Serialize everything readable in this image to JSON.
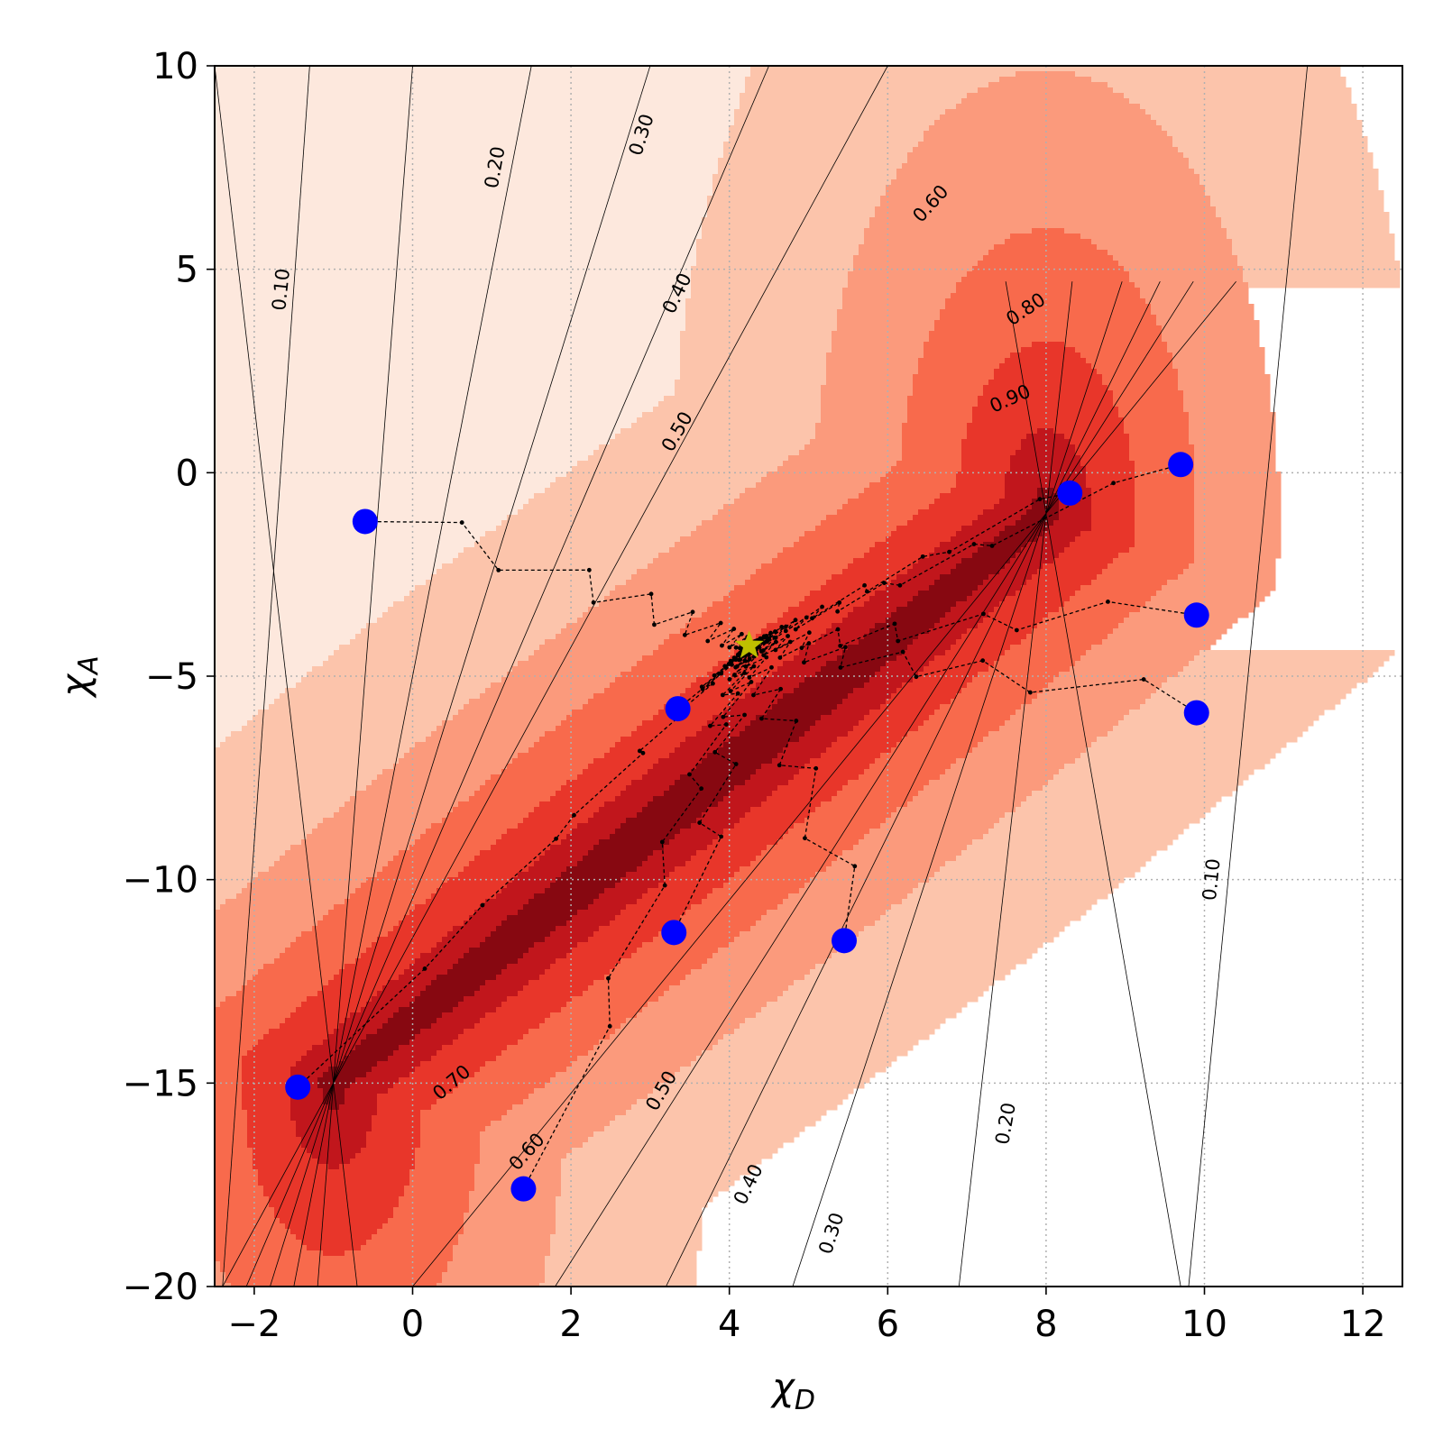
{
  "chart_data": {
    "type": "contour",
    "title": "",
    "xlabel": "χ",
    "xlabel_sub": "D",
    "ylabel": "χ",
    "ylabel_sub": "A",
    "xlim": [
      -2.5,
      12.5
    ],
    "ylim": [
      -20,
      10
    ],
    "xticks": [
      -2,
      0,
      2,
      4,
      6,
      8,
      10,
      12
    ],
    "yticks": [
      -20,
      -15,
      -10,
      -5,
      0,
      5,
      10
    ],
    "xtick_labels": [
      "−2",
      "0",
      "2",
      "4",
      "6",
      "8",
      "10",
      "12"
    ],
    "ytick_labels": [
      "−20",
      "−15",
      "−10",
      "−5",
      "0",
      "5",
      "10"
    ],
    "grid": true,
    "contour_levels": [
      0.1,
      0.2,
      0.3,
      0.4,
      0.5,
      0.6,
      0.7,
      0.8,
      0.9
    ],
    "colormap": [
      "#fde8dd",
      "#fcc4ab",
      "#fb9a7c",
      "#f86a4c",
      "#e8362a",
      "#c1161c",
      "#870811"
    ],
    "contour_labels": [
      {
        "text": "0.10",
        "x": -1.65,
        "y": 4.5,
        "angle": -84
      },
      {
        "text": "0.20",
        "x": 1.05,
        "y": 7.5,
        "angle": -80
      },
      {
        "text": "0.30",
        "x": 2.9,
        "y": 8.3,
        "angle": -72
      },
      {
        "text": "0.40",
        "x": 3.35,
        "y": 4.4,
        "angle": -64
      },
      {
        "text": "0.50",
        "x": 3.35,
        "y": 1.0,
        "angle": -60
      },
      {
        "text": "0.60",
        "x": 6.55,
        "y": 6.6,
        "angle": -48
      },
      {
        "text": "0.80",
        "x": 7.75,
        "y": 4.0,
        "angle": -34
      },
      {
        "text": "0.90",
        "x": 7.55,
        "y": 1.8,
        "angle": -24
      },
      {
        "text": "0.70",
        "x": 0.5,
        "y": -15.0,
        "angle": -40
      },
      {
        "text": "0.60",
        "x": 1.45,
        "y": -16.7,
        "angle": -48
      },
      {
        "text": "0.50",
        "x": 3.15,
        "y": -15.2,
        "angle": -60
      },
      {
        "text": "0.40",
        "x": 4.25,
        "y": -17.5,
        "angle": -64
      },
      {
        "text": "0.30",
        "x": 5.3,
        "y": -18.7,
        "angle": -72
      },
      {
        "text": "0.20",
        "x": 7.5,
        "y": -16.0,
        "angle": -80
      },
      {
        "text": "0.10",
        "x": 10.1,
        "y": -10.0,
        "angle": -84
      }
    ],
    "start_points": [
      {
        "x": -0.6,
        "y": -1.2
      },
      {
        "x": 3.35,
        "y": -5.8
      },
      {
        "x": 3.3,
        "y": -11.3
      },
      {
        "x": 5.45,
        "y": -11.5
      },
      {
        "x": -1.45,
        "y": -15.1
      },
      {
        "x": 1.4,
        "y": -17.6
      },
      {
        "x": 8.3,
        "y": -0.5
      },
      {
        "x": 9.7,
        "y": 0.2
      },
      {
        "x": 9.9,
        "y": -3.5
      },
      {
        "x": 9.9,
        "y": -5.9
      }
    ],
    "optimum": {
      "x": 4.25,
      "y": -4.25
    },
    "start_point_color": "#0000ff",
    "optimum_color": "#bfbf00"
  }
}
